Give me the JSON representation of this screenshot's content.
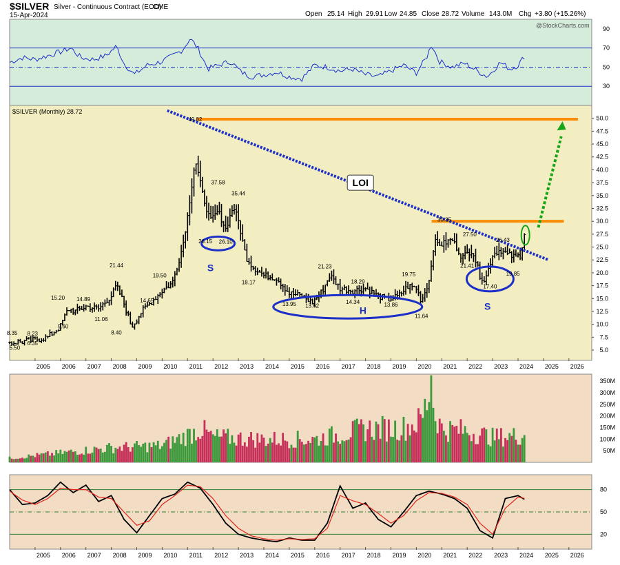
{
  "header": {
    "symbol": "$SILVER",
    "description": "Silver - Continuous Contract (EOD)",
    "exchange": "CME",
    "date": "15-Apr-2024",
    "open_label": "Open",
    "open": "25.14",
    "high_label": "High",
    "high": "29.91",
    "low_label": "Low",
    "low": "24.85",
    "close_label": "Close",
    "close": "28.72",
    "volume_label": "Volume",
    "volume": "143.0M",
    "chg_label": "Chg",
    "chg": "+3.80 (+15.26%)",
    "watermark": "@StockCharts.com"
  },
  "colors": {
    "price_bg": "#f3eec2",
    "rsi_bg": "#d6ecdb",
    "volume_bg": "#f2dcc4",
    "stoch_bg": "#f2dcc4",
    "price_bar": "#000000",
    "resistance": "#ff8c00",
    "trendline": "#1c2fc9",
    "pattern": "#1c2fc9",
    "arrow": "#19a319",
    "vol_up": "#3c9a3c",
    "vol_down": "#c6305a",
    "stoch_k": "#000000",
    "stoch_d": "#e0251b",
    "rsi_line": "#1c2fc9"
  },
  "chart_data": [
    {
      "type": "line",
      "name": "RSI panel",
      "ylim": [
        10,
        100
      ],
      "yticks": [
        30,
        50,
        70,
        90
      ],
      "reference_lines": [
        70,
        50,
        30
      ],
      "x": [
        2004.0,
        2004.5,
        2005.0,
        2005.5,
        2006.0,
        2006.4,
        2006.8,
        2007.3,
        2007.8,
        2008.2,
        2008.5,
        2008.9,
        2009.4,
        2009.9,
        2010.3,
        2010.8,
        2011.1,
        2011.4,
        2011.8,
        2012.2,
        2012.7,
        2013.1,
        2013.5,
        2014.0,
        2014.5,
        2015.0,
        2015.5,
        2016.0,
        2016.5,
        2017.0,
        2017.5,
        2018.0,
        2018.5,
        2019.0,
        2019.5,
        2020.0,
        2020.4,
        2020.6,
        2020.9,
        2021.4,
        2021.9,
        2022.4,
        2022.8,
        2023.3,
        2023.7,
        2024.0,
        2024.3
      ],
      "values": [
        55,
        60,
        58,
        62,
        66,
        70,
        60,
        58,
        62,
        72,
        54,
        42,
        52,
        55,
        60,
        68,
        80,
        70,
        48,
        52,
        56,
        45,
        40,
        42,
        45,
        40,
        38,
        52,
        50,
        46,
        48,
        42,
        40,
        46,
        52,
        44,
        60,
        74,
        56,
        50,
        54,
        46,
        40,
        55,
        48,
        52,
        63
      ]
    },
    {
      "type": "bar",
      "name": "$SILVER (Monthly)",
      "legend": "$SILVER (Monthly) 28.72",
      "ylim": [
        3.0,
        52.5
      ],
      "yticks": [
        5.0,
        7.5,
        10.0,
        12.5,
        15.0,
        17.5,
        20.0,
        22.5,
        25.0,
        27.5,
        30.0,
        32.5,
        35.0,
        37.5,
        40.0,
        42.5,
        45.0,
        47.5,
        50.0
      ],
      "xlim": [
        2004.0,
        2026.9
      ],
      "xticks": [
        "2005",
        "2006",
        "2007",
        "2008",
        "2009",
        "2010",
        "2011",
        "2012",
        "2013",
        "2014",
        "2015",
        "2016",
        "2017",
        "2018",
        "2019",
        "2020",
        "2021",
        "2022",
        "2023",
        "2024",
        "2025",
        "2026"
      ],
      "x": [
        2004.0,
        2004.5,
        2005.0,
        2005.5,
        2006.0,
        2006.3,
        2006.6,
        2007.0,
        2007.5,
        2008.0,
        2008.2,
        2008.5,
        2008.8,
        2009.2,
        2009.6,
        2010.0,
        2010.4,
        2010.8,
        2011.0,
        2011.3,
        2011.6,
        2011.9,
        2012.2,
        2012.5,
        2012.8,
        2013.0,
        2013.3,
        2013.6,
        2014.0,
        2014.5,
        2015.0,
        2015.5,
        2015.9,
        2016.3,
        2016.6,
        2017.0,
        2017.5,
        2018.0,
        2018.5,
        2018.9,
        2019.3,
        2019.7,
        2020.0,
        2020.2,
        2020.5,
        2020.7,
        2021.0,
        2021.4,
        2021.8,
        2022.2,
        2022.5,
        2022.7,
        2023.0,
        2023.3,
        2023.6,
        2023.9,
        2024.1,
        2024.29
      ],
      "values": [
        6.4,
        6.6,
        7.0,
        7.5,
        9.6,
        13.0,
        12.5,
        13.5,
        13.0,
        15.5,
        17.5,
        14.0,
        9.5,
        12.5,
        14.5,
        16.5,
        18.0,
        25.0,
        31.0,
        42.0,
        35.0,
        30.0,
        32.0,
        28.5,
        33.0,
        30.0,
        23.0,
        21.0,
        19.5,
        19.0,
        16.0,
        15.5,
        14.2,
        16.5,
        19.5,
        17.0,
        16.5,
        17.0,
        15.5,
        14.8,
        15.5,
        17.5,
        17.0,
        14.5,
        18.5,
        26.0,
        25.5,
        26.5,
        23.0,
        24.5,
        19.5,
        18.5,
        23.5,
        24.5,
        23.5,
        23.0,
        23.5,
        28.72
      ],
      "price_labels": [
        {
          "x": 2004.1,
          "value": 8.35,
          "text": "8.35"
        },
        {
          "x": 2004.2,
          "value": 5.5,
          "text": "5.50"
        },
        {
          "x": 2004.9,
          "value": 8.23,
          "text": "8.23"
        },
        {
          "x": 2004.9,
          "value": 6.35,
          "text": "6.35"
        },
        {
          "x": 2005.9,
          "value": 15.2,
          "text": "15.20"
        },
        {
          "x": 2006.1,
          "value": 9.6,
          "text": "9.60"
        },
        {
          "x": 2006.9,
          "value": 14.89,
          "text": "14.89"
        },
        {
          "x": 2007.6,
          "value": 11.06,
          "text": "11.06"
        },
        {
          "x": 2008.2,
          "value": 21.44,
          "text": "21.44"
        },
        {
          "x": 2008.2,
          "value": 8.4,
          "text": "8.40"
        },
        {
          "x": 2009.9,
          "value": 19.5,
          "text": "19.50"
        },
        {
          "x": 2009.4,
          "value": 14.65,
          "text": "14.65"
        },
        {
          "x": 2011.3,
          "value": 49.82,
          "text": "49.82"
        },
        {
          "x": 2012.2,
          "value": 37.58,
          "text": "37.58"
        },
        {
          "x": 2013.0,
          "value": 35.44,
          "text": "35.44"
        },
        {
          "x": 2011.7,
          "value": 26.15,
          "text": "26.15"
        },
        {
          "x": 2012.5,
          "value": 26.1,
          "text": "26.10"
        },
        {
          "x": 2013.4,
          "value": 18.17,
          "text": "18.17"
        },
        {
          "x": 2016.4,
          "value": 21.23,
          "text": "21.23"
        },
        {
          "x": 2017.7,
          "value": 18.29,
          "text": "18.29"
        },
        {
          "x": 2015.0,
          "value": 13.95,
          "text": "13.95"
        },
        {
          "x": 2015.9,
          "value": 13.62,
          "text": "13.62"
        },
        {
          "x": 2017.5,
          "value": 14.34,
          "text": "14.34"
        },
        {
          "x": 2019.0,
          "value": 13.86,
          "text": "13.86"
        },
        {
          "x": 2019.7,
          "value": 19.75,
          "text": "19.75"
        },
        {
          "x": 2020.2,
          "value": 11.64,
          "text": "11.64"
        },
        {
          "x": 2021.1,
          "value": 30.35,
          "text": "30.35"
        },
        {
          "x": 2022.1,
          "value": 27.5,
          "text": "27.50"
        },
        {
          "x": 2022.0,
          "value": 21.41,
          "text": "21.41"
        },
        {
          "x": 2023.4,
          "value": 26.43,
          "text": "26.43"
        },
        {
          "x": 2022.9,
          "value": 17.4,
          "text": "17.40"
        },
        {
          "x": 2023.8,
          "value": 19.85,
          "text": "19.85"
        }
      ],
      "annotations": {
        "loi_label": "LOI",
        "shoulder_left": "S",
        "head": "H",
        "shoulder_right": "S"
      }
    },
    {
      "type": "bar",
      "name": "Volume",
      "unit": "M",
      "ylim": [
        0,
        380
      ],
      "yticks": [
        "50M",
        "100M",
        "150M",
        "200M",
        "250M",
        "300M",
        "350M"
      ]
    },
    {
      "type": "line",
      "name": "Stochastic",
      "ylim": [
        0,
        100
      ],
      "yticks": [
        20,
        50,
        80
      ],
      "series": [
        {
          "x": [
            2004.0,
            2004.5,
            2005.0,
            2005.5,
            2006.0,
            2006.5,
            2007.0,
            2007.5,
            2008.0,
            2008.5,
            2009.0,
            2009.5,
            2010.0,
            2010.5,
            2011.0,
            2011.5,
            2012.0,
            2012.5,
            2013.0,
            2013.5,
            2014.0,
            2014.5,
            2015.0,
            2015.5,
            2016.0,
            2016.5,
            2017.0,
            2017.5,
            2018.0,
            2018.5,
            2019.0,
            2019.5,
            2020.0,
            2020.5,
            2021.0,
            2021.5,
            2022.0,
            2022.5,
            2023.0,
            2023.5,
            2024.0,
            2024.3
          ],
          "values": [
            80,
            60,
            62,
            72,
            90,
            76,
            86,
            64,
            72,
            40,
            22,
            45,
            68,
            74,
            90,
            82,
            60,
            35,
            20,
            15,
            12,
            10,
            15,
            12,
            12,
            35,
            85,
            55,
            62,
            40,
            30,
            50,
            72,
            78,
            74,
            68,
            55,
            25,
            15,
            68,
            72,
            66
          ]
        },
        {
          "x": [
            2004.0,
            2004.5,
            2005.0,
            2005.5,
            2006.0,
            2006.5,
            2007.0,
            2007.5,
            2008.0,
            2008.5,
            2009.0,
            2009.5,
            2010.0,
            2010.5,
            2011.0,
            2011.5,
            2012.0,
            2012.5,
            2013.0,
            2013.5,
            2014.0,
            2014.5,
            2015.0,
            2015.5,
            2016.0,
            2016.5,
            2017.0,
            2017.5,
            2018.0,
            2018.5,
            2019.0,
            2019.5,
            2020.0,
            2020.5,
            2021.0,
            2021.5,
            2022.0,
            2022.5,
            2023.0,
            2023.5,
            2024.0,
            2024.3
          ],
          "values": [
            78,
            66,
            60,
            68,
            82,
            80,
            80,
            70,
            68,
            50,
            32,
            38,
            60,
            72,
            86,
            84,
            68,
            45,
            28,
            18,
            14,
            12,
            14,
            13,
            14,
            28,
            72,
            65,
            60,
            48,
            35,
            45,
            65,
            76,
            75,
            70,
            60,
            35,
            20,
            55,
            70,
            68
          ]
        }
      ]
    }
  ]
}
